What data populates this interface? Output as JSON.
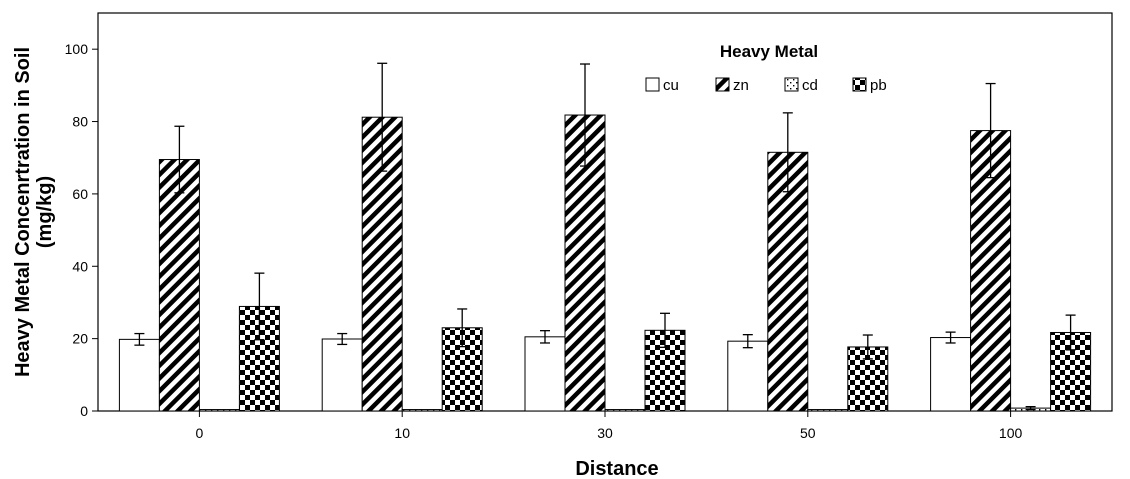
{
  "chart_data": {
    "type": "bar",
    "xlabel": "Distance",
    "ylabel_line1": "Heavy Metal Concenrtration in Soil",
    "ylabel_line2": "(mg/kg)",
    "ylim": [
      0,
      110
    ],
    "yticks": [
      0,
      20,
      40,
      60,
      80,
      100
    ],
    "categories": [
      "0",
      "10",
      "30",
      "50",
      "100"
    ],
    "legend_title": "Heavy Metal",
    "legend_position": "top-center",
    "grid": false,
    "error_bars": true,
    "series": [
      {
        "name": "cu",
        "pattern": "white",
        "values": [
          19.8,
          19.9,
          20.5,
          19.3,
          20.3
        ],
        "errors": [
          1.6,
          1.5,
          1.7,
          1.8,
          1.5
        ]
      },
      {
        "name": "zn",
        "pattern": "diagonal-stripes",
        "values": [
          69.5,
          81.2,
          81.8,
          71.5,
          77.5
        ],
        "errors": [
          9.2,
          14.9,
          14.1,
          10.9,
          13.0
        ]
      },
      {
        "name": "cd",
        "pattern": "dotted",
        "values": [
          0.4,
          0.4,
          0.4,
          0.4,
          0.8
        ],
        "errors": [
          0.1,
          0.1,
          0.1,
          0.1,
          0.4
        ]
      },
      {
        "name": "pb",
        "pattern": "checkerboard",
        "values": [
          28.9,
          23.0,
          22.3,
          17.7,
          21.7
        ],
        "errors": [
          9.2,
          5.2,
          4.7,
          3.3,
          4.8
        ]
      }
    ]
  }
}
